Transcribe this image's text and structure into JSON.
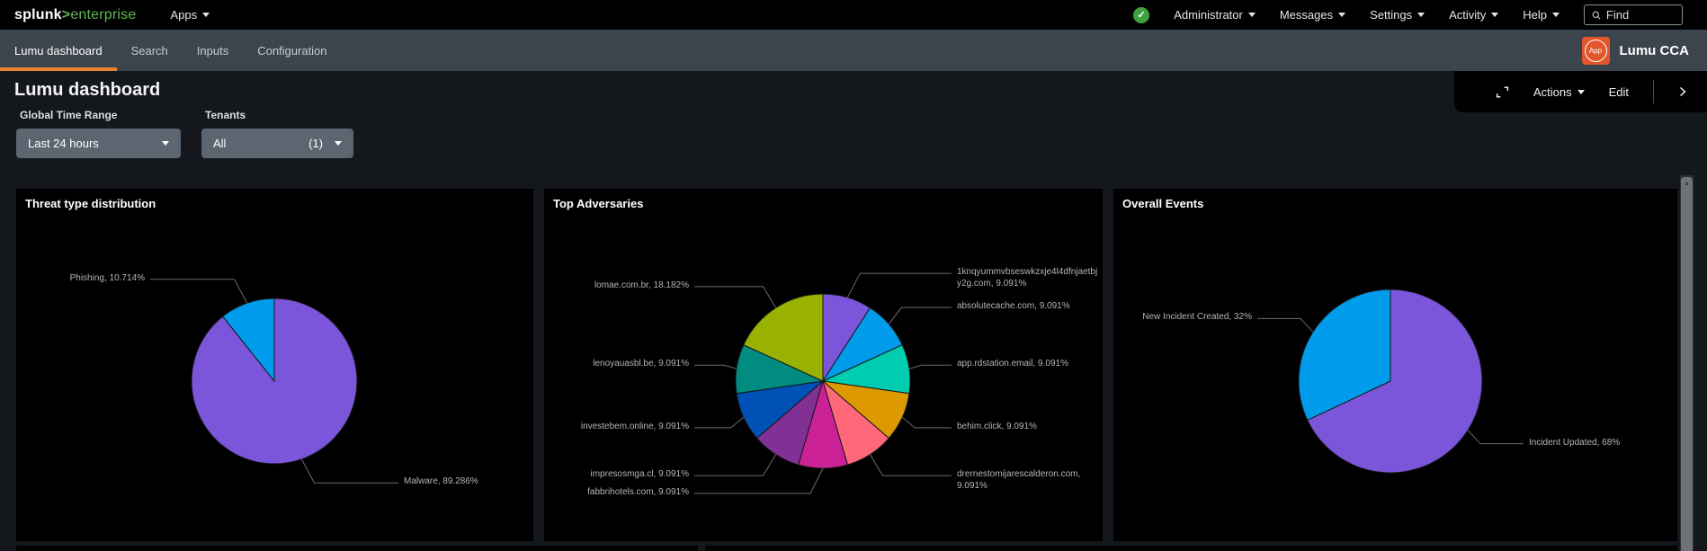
{
  "topbar": {
    "logo_splunk": "splunk",
    "logo_gt": ">",
    "logo_product": "enterprise",
    "apps_label": "Apps",
    "menus": [
      "Administrator",
      "Messages",
      "Settings",
      "Activity",
      "Help"
    ],
    "find_placeholder": "Find"
  },
  "appbar": {
    "tabs": [
      {
        "label": "Lumu dashboard",
        "active": true
      },
      {
        "label": "Search",
        "active": false
      },
      {
        "label": "Inputs",
        "active": false
      },
      {
        "label": "Configuration",
        "active": false
      }
    ],
    "app_badge_text": "App",
    "app_name": "Lumu CCA"
  },
  "header": {
    "title": "Lumu dashboard",
    "toolbar": {
      "actions_label": "Actions",
      "edit_label": "Edit"
    },
    "filters": [
      {
        "label": "Global Time Range",
        "value": "Last 24 hours",
        "count": ""
      },
      {
        "label": "Tenants",
        "value": "All",
        "count": "(1)"
      }
    ]
  },
  "icons": {
    "status_check": "✓",
    "scroll_up": "▲"
  },
  "colors": {
    "topbar_bg": "#000000",
    "appbar_bg": "#3c444d",
    "page_bg": "#14171c",
    "panel_bg": "#000000",
    "toolbar_bg": "#000000",
    "accent_orange": "#ee8234",
    "app_badge_orange": "#e2562b",
    "status_green": "#3fa142",
    "logo_green": "#62b750",
    "dropdown_bg": "#5c6670",
    "label_gray": "#b5b5b5"
  },
  "chart_data": [
    {
      "type": "pie",
      "title": "Threat type distribution",
      "legend_position": "labels-outside",
      "slices": [
        {
          "label": "Malware",
          "value": 89.286,
          "pct": "89.286%",
          "color": "#7b56db"
        },
        {
          "label": "Phishing",
          "value": 10.714,
          "pct": "10.714%",
          "color": "#009ceb"
        }
      ]
    },
    {
      "type": "pie",
      "title": "Top Adversaries",
      "legend_position": "labels-outside",
      "slices": [
        {
          "label": "1knqyummvbseswkzxje4l4dfnjaetbjy2g.com",
          "value": 9.091,
          "pct": "9.091%",
          "color": "#7b56db"
        },
        {
          "label": "absolutecache.com",
          "value": 9.091,
          "pct": "9.091%",
          "color": "#009ceb"
        },
        {
          "label": "app.rdstation.email",
          "value": 9.091,
          "pct": "9.091%",
          "color": "#00cdaf"
        },
        {
          "label": "behim.click",
          "value": 9.091,
          "pct": "9.091%",
          "color": "#dd9900"
        },
        {
          "label": "drernestomijarescalderon.com",
          "value": 9.091,
          "pct": "9.091%",
          "color": "#ff677b"
        },
        {
          "label": "fabbrihotels.com",
          "value": 9.091,
          "pct": "9.091%",
          "color": "#cb2196"
        },
        {
          "label": "impresosmga.cl",
          "value": 9.091,
          "pct": "9.091%",
          "color": "#813193"
        },
        {
          "label": "investebem.online",
          "value": 9.091,
          "pct": "9.091%",
          "color": "#0051b5"
        },
        {
          "label": "lenoyauasbl.be",
          "value": 9.091,
          "pct": "9.091%",
          "color": "#008c80"
        },
        {
          "label": "lomae.com.br",
          "value": 18.182,
          "pct": "18.182%",
          "color": "#99b100"
        }
      ]
    },
    {
      "type": "pie",
      "title": "Overall Events",
      "legend_position": "labels-outside",
      "slices": [
        {
          "label": "Incident Updated",
          "value": 68,
          "pct": "68%",
          "color": "#7b56db"
        },
        {
          "label": "New Incident Created",
          "value": 32,
          "pct": "32%",
          "color": "#009ceb"
        }
      ]
    }
  ]
}
